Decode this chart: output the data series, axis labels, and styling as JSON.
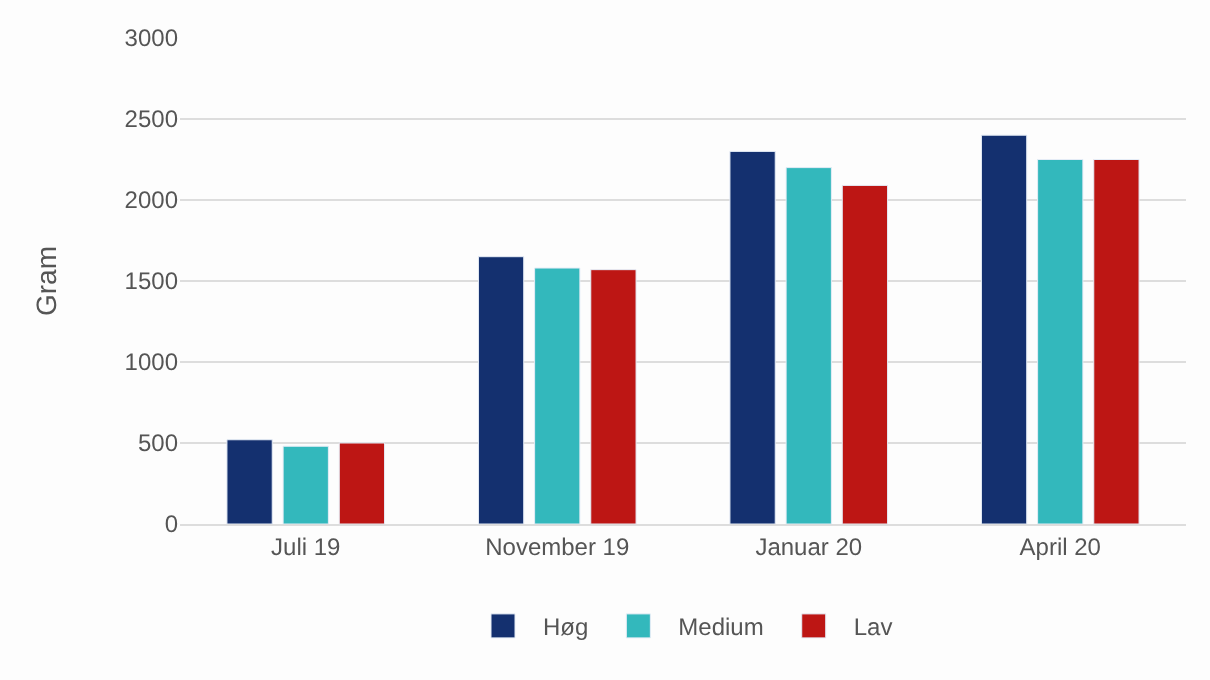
{
  "chart_data": {
    "type": "bar",
    "ylabel": "Gram",
    "categories": [
      "Juli 19",
      "November 19",
      "Januar 20",
      "April 20"
    ],
    "series": [
      {
        "name": "Høg",
        "color": "#14306f",
        "values": [
          520,
          1650,
          2300,
          2400
        ]
      },
      {
        "name": "Medium",
        "color": "#33b8bc",
        "values": [
          480,
          1580,
          2200,
          2250
        ]
      },
      {
        "name": "Lav",
        "color": "#bd1614",
        "values": [
          500,
          1570,
          2090,
          2250
        ]
      }
    ],
    "ylim": [
      0,
      3000
    ],
    "yticks": [
      0,
      500,
      1000,
      1500,
      2000,
      2500,
      3000
    ],
    "grid": "y",
    "legend": "bottom"
  }
}
